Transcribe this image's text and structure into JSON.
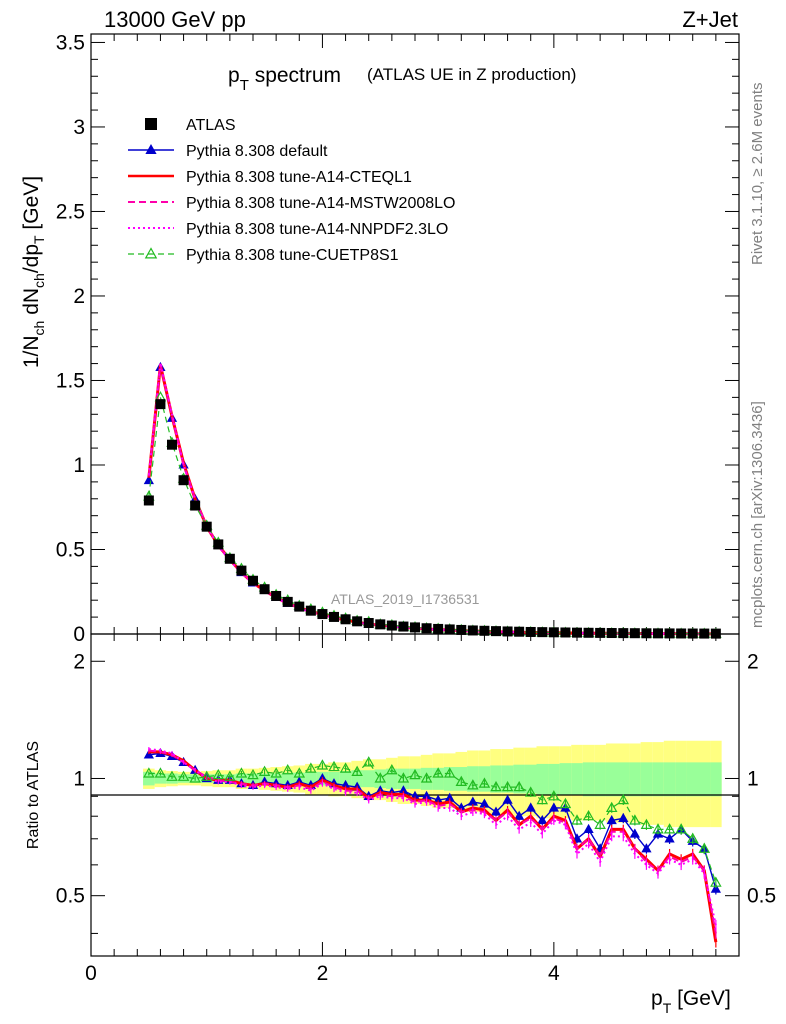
{
  "header": {
    "left": "13000 GeV pp",
    "right": "Z+Jet"
  },
  "side": {
    "rivet": "Rivet 3.1.10, ≥ 2.6M events",
    "mcplots": "mcplots.cern.ch [arXiv:1306.3436]"
  },
  "main": {
    "title_main": "p",
    "title_sub": "T",
    "title_rest": " spectrum",
    "title_paren": "(ATLAS UE in Z production)",
    "ylabel": "1/N_ch dN_ch/dp_T [GeV]",
    "watermark": "ATLAS_2019_I1736531",
    "yticks": [
      "0",
      "0.5",
      "1",
      "1.5",
      "2",
      "2.5",
      "3",
      "3.5"
    ]
  },
  "ratio": {
    "ylabel": "Ratio to ATLAS",
    "yticks_left": [
      "0.5",
      "1",
      "2"
    ],
    "yticks_right": [
      "0.5",
      "1",
      "2"
    ]
  },
  "xaxis": {
    "label": "p_T [GeV]",
    "ticks": [
      "0",
      "2",
      "4"
    ]
  },
  "legend": [
    {
      "label": "ATLAS",
      "color": "#000000",
      "style": "square"
    },
    {
      "label": "Pythia 8.308 default",
      "color": "#0000cc",
      "style": "solid-triangle"
    },
    {
      "label": "Pythia 8.308 tune-A14-CTEQL1",
      "color": "#ff0000",
      "style": "solid"
    },
    {
      "label": "Pythia 8.308 tune-A14-MSTW2008LO",
      "color": "#ff00aa",
      "style": "dashed"
    },
    {
      "label": "Pythia 8.308 tune-A14-NNPDF2.3LO",
      "color": "#ff00ff",
      "style": "dotted"
    },
    {
      "label": "Pythia 8.308 tune-CUETP8S1",
      "color": "#22bb22",
      "style": "dashed-open-triangle"
    }
  ],
  "chart_data": {
    "type": "line",
    "x": [
      0.5,
      0.6,
      0.7,
      0.8,
      0.9,
      1.0,
      1.1,
      1.2,
      1.3,
      1.4,
      1.5,
      1.6,
      1.7,
      1.8,
      1.9,
      2.0,
      2.1,
      2.2,
      2.3,
      2.4,
      2.5,
      2.6,
      2.7,
      2.8,
      2.9,
      3.0,
      3.1,
      3.2,
      3.3,
      3.4,
      3.5,
      3.6,
      3.7,
      3.8,
      3.9,
      4.0,
      4.1,
      4.2,
      4.3,
      4.4,
      4.5,
      4.6,
      4.7,
      4.8,
      4.9,
      5.0,
      5.1,
      5.2,
      5.3,
      5.4
    ],
    "xlim": [
      0,
      5.6
    ],
    "ylim": [
      0,
      3.55
    ],
    "ratio_ylim": [
      0.35,
      2.35
    ],
    "ratio_scale": "log",
    "data": [
      0.79,
      1.36,
      1.12,
      0.91,
      0.76,
      0.635,
      0.53,
      0.445,
      0.375,
      0.315,
      0.265,
      0.225,
      0.19,
      0.162,
      0.138,
      0.118,
      0.101,
      0.087,
      0.075,
      0.065,
      0.057,
      0.05,
      0.044,
      0.039,
      0.034,
      0.03,
      0.027,
      0.024,
      0.021,
      0.019,
      0.017,
      0.015,
      0.0135,
      0.012,
      0.011,
      0.01,
      0.009,
      0.008,
      0.0072,
      0.0065,
      0.0058,
      0.0052,
      0.0047,
      0.0042,
      0.0038,
      0.0034,
      0.0031,
      0.0028,
      0.0025,
      0.0023
    ],
    "band_inner": [
      0.04,
      0.03,
      0.03,
      0.025,
      0.025,
      0.025,
      0.025,
      0.025,
      0.03,
      0.03,
      0.03,
      0.03,
      0.035,
      0.035,
      0.04,
      0.04,
      0.04,
      0.045,
      0.05,
      0.05,
      0.055,
      0.06,
      0.06,
      0.06,
      0.065,
      0.065,
      0.07,
      0.07,
      0.075,
      0.075,
      0.08,
      0.08,
      0.085,
      0.085,
      0.09,
      0.09,
      0.095,
      0.095,
      0.1,
      0.1,
      0.1,
      0.1,
      0.1,
      0.1,
      0.1,
      0.1,
      0.1,
      0.1,
      0.1,
      0.1
    ],
    "band_outer": [
      0.06,
      0.05,
      0.045,
      0.04,
      0.04,
      0.045,
      0.05,
      0.05,
      0.06,
      0.06,
      0.065,
      0.07,
      0.075,
      0.08,
      0.09,
      0.09,
      0.1,
      0.1,
      0.11,
      0.12,
      0.12,
      0.13,
      0.14,
      0.14,
      0.15,
      0.16,
      0.16,
      0.17,
      0.18,
      0.18,
      0.19,
      0.19,
      0.2,
      0.2,
      0.21,
      0.21,
      0.21,
      0.22,
      0.22,
      0.22,
      0.23,
      0.23,
      0.23,
      0.24,
      0.24,
      0.25,
      0.25,
      0.25,
      0.25,
      0.25
    ],
    "series": [
      {
        "name": "Pythia 8.308 default",
        "color": "#0000cc",
        "dash": "",
        "width": 1.4,
        "marker": "filled-triangle",
        "ratio": [
          1.15,
          1.16,
          1.14,
          1.1,
          1.05,
          1.0,
          0.99,
          0.99,
          0.97,
          0.96,
          0.98,
          0.97,
          0.96,
          0.98,
          0.96,
          1.0,
          0.97,
          0.96,
          0.95,
          0.9,
          0.93,
          0.92,
          0.93,
          0.9,
          0.9,
          0.88,
          0.89,
          0.84,
          0.87,
          0.86,
          0.82,
          0.88,
          0.8,
          0.84,
          0.78,
          0.84,
          0.84,
          0.7,
          0.74,
          0.66,
          0.78,
          0.79,
          0.72,
          0.66,
          0.72,
          0.7,
          0.74,
          0.69,
          0.66,
          0.52
        ]
      },
      {
        "name": "Pythia 8.308 tune-A14-CTEQL1",
        "color": "#ff0000",
        "dash": "",
        "width": 3,
        "marker": "none",
        "ratio": [
          1.17,
          1.17,
          1.15,
          1.11,
          1.05,
          1.0,
          0.99,
          0.99,
          0.97,
          0.96,
          0.97,
          0.96,
          0.95,
          0.97,
          0.95,
          0.99,
          0.96,
          0.94,
          0.94,
          0.89,
          0.92,
          0.91,
          0.91,
          0.88,
          0.88,
          0.86,
          0.87,
          0.82,
          0.84,
          0.83,
          0.78,
          0.83,
          0.76,
          0.8,
          0.74,
          0.8,
          0.78,
          0.66,
          0.7,
          0.63,
          0.74,
          0.74,
          0.66,
          0.62,
          0.58,
          0.64,
          0.62,
          0.64,
          0.58,
          0.38
        ]
      },
      {
        "name": "Pythia 8.308 tune-A14-MSTW2008LO",
        "color": "#ff00aa",
        "dash": "7,4",
        "width": 2,
        "marker": "none",
        "ratio": [
          1.18,
          1.17,
          1.15,
          1.1,
          1.05,
          1.01,
          0.99,
          0.98,
          0.97,
          0.96,
          0.97,
          0.96,
          0.95,
          0.96,
          0.94,
          0.98,
          0.95,
          0.93,
          0.93,
          0.89,
          0.91,
          0.9,
          0.9,
          0.87,
          0.88,
          0.85,
          0.86,
          0.82,
          0.83,
          0.82,
          0.78,
          0.82,
          0.76,
          0.79,
          0.74,
          0.79,
          0.77,
          0.66,
          0.7,
          0.63,
          0.73,
          0.73,
          0.66,
          0.61,
          0.58,
          0.63,
          0.61,
          0.63,
          0.58,
          0.4
        ]
      },
      {
        "name": "Pythia 8.308 tune-A14-NNPDF2.3LO",
        "color": "#ff00ff",
        "dash": "2,3",
        "width": 2,
        "marker": "none",
        "ratio": [
          1.19,
          1.18,
          1.16,
          1.1,
          1.05,
          1.0,
          0.98,
          0.98,
          0.96,
          0.95,
          0.96,
          0.95,
          0.94,
          0.95,
          0.93,
          0.97,
          0.94,
          0.92,
          0.92,
          0.88,
          0.9,
          0.89,
          0.89,
          0.86,
          0.87,
          0.84,
          0.84,
          0.8,
          0.82,
          0.81,
          0.76,
          0.8,
          0.74,
          0.77,
          0.72,
          0.78,
          0.76,
          0.64,
          0.68,
          0.61,
          0.71,
          0.71,
          0.64,
          0.6,
          0.57,
          0.62,
          0.6,
          0.62,
          0.57,
          0.42
        ]
      },
      {
        "name": "Pythia 8.308 tune-CUETP8S1",
        "color": "#22bb22",
        "dash": "6,4",
        "width": 1.2,
        "marker": "open-triangle",
        "ratio": [
          1.03,
          1.03,
          1.01,
          1.01,
          1.0,
          1.01,
          1.02,
          1.01,
          1.03,
          1.02,
          1.04,
          1.03,
          1.05,
          1.03,
          1.06,
          1.08,
          1.07,
          1.06,
          1.04,
          1.1,
          1.0,
          1.05,
          1.0,
          1.02,
          1.0,
          1.03,
          1.03,
          0.98,
          0.96,
          0.97,
          0.95,
          0.95,
          0.95,
          0.92,
          0.88,
          0.9,
          0.86,
          0.78,
          0.8,
          0.76,
          0.84,
          0.88,
          0.78,
          0.76,
          0.74,
          0.74,
          0.74,
          0.7,
          0.66,
          0.54
        ]
      }
    ]
  }
}
